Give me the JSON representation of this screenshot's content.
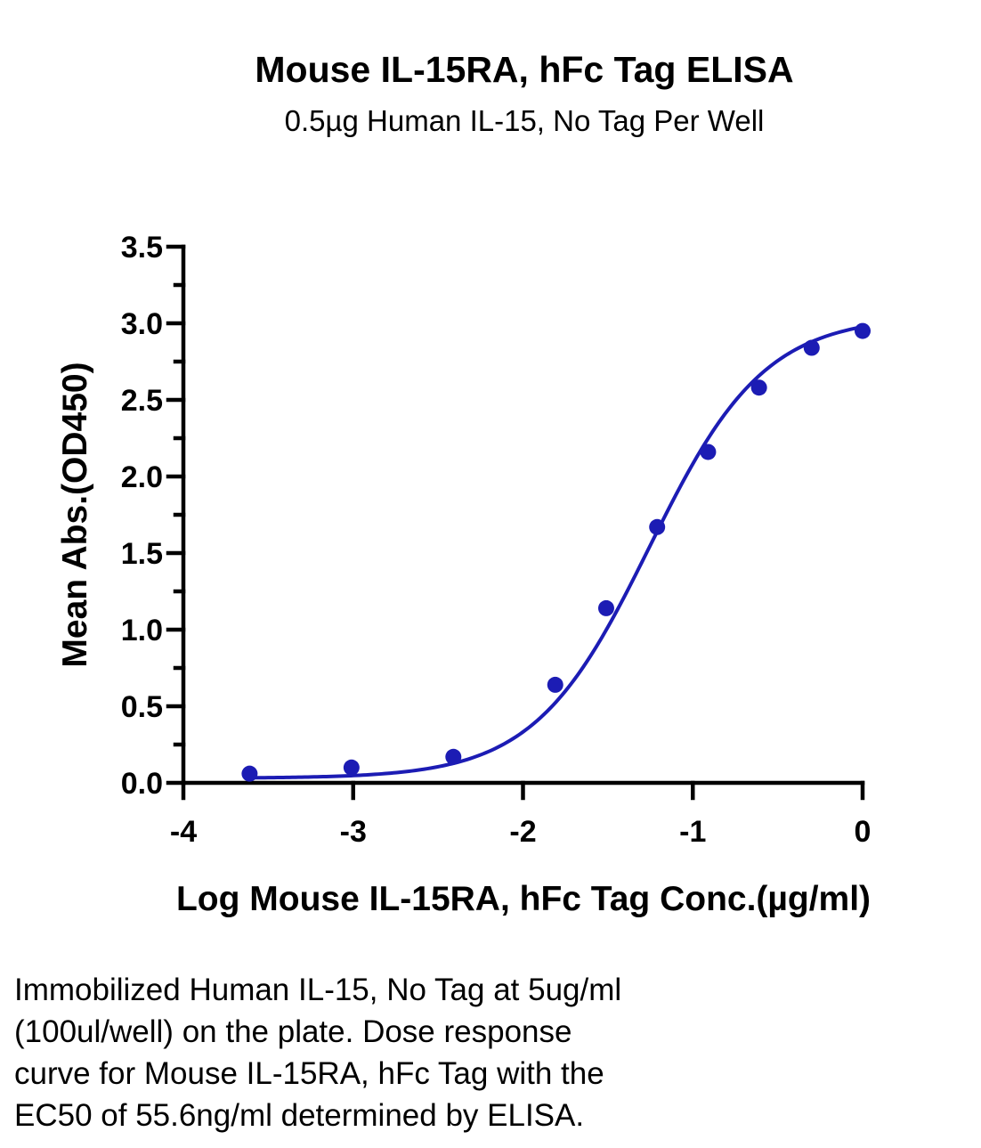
{
  "chart_data": {
    "type": "scatter",
    "title": "Mouse IL-15RA, hFc Tag ELISA",
    "subtitle": "0.5µg Human IL-15, No Tag Per Well",
    "xlabel": "Log Mouse IL-15RA, hFc Tag Conc.(µg/ml)",
    "ylabel": "Mean Abs.(OD450)",
    "xlim": [
      -4,
      0
    ],
    "ylim": [
      0,
      3.5
    ],
    "x_ticks": [
      "-4",
      "-3",
      "-2",
      "-1",
      "0"
    ],
    "y_ticks": [
      "0.0",
      "0.5",
      "1.0",
      "1.5",
      "2.0",
      "2.5",
      "3.0",
      "3.5"
    ],
    "x": [
      -3.61,
      -3.01,
      -2.41,
      -1.81,
      -1.51,
      -1.21,
      -0.91,
      -0.61,
      -0.3,
      0.0
    ],
    "values": [
      0.06,
      0.1,
      0.17,
      0.64,
      1.14,
      1.67,
      2.16,
      2.58,
      2.84,
      2.95
    ],
    "fit": {
      "type": "4PL sigmoid",
      "bottom": 0.03,
      "top": 3.05,
      "log_ec50": -1.255,
      "hill": 1.28
    },
    "grid": false,
    "legend": "none",
    "color": "#1c1cb4"
  },
  "caption": {
    "lines": [
      "Immobilized Human IL-15, No Tag at 5ug/ml",
      "(100ul/well) on the plate. Dose response",
      "curve for Mouse IL-15RA, hFc Tag with the",
      "EC50 of 55.6ng/ml determined by ELISA."
    ]
  }
}
